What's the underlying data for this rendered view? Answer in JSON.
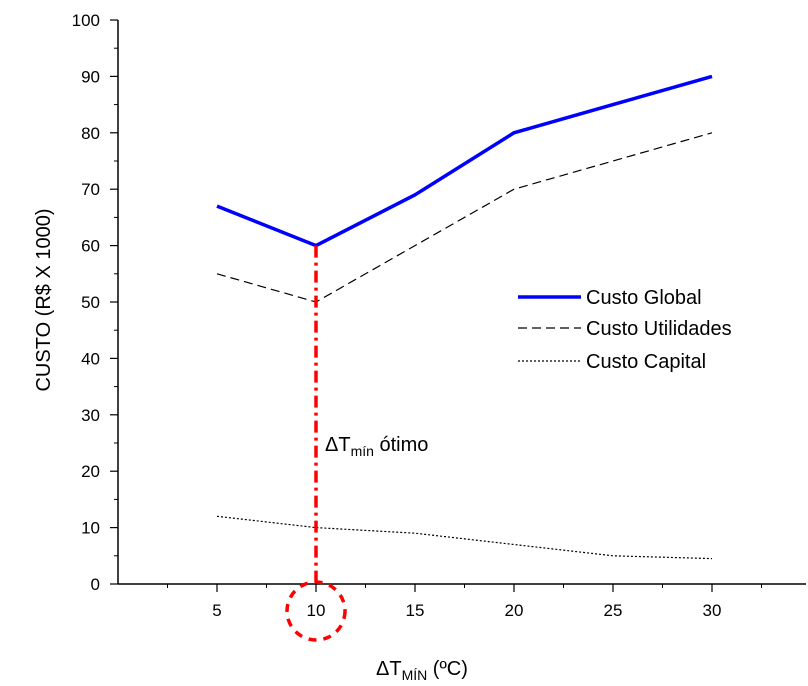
{
  "chart_data": {
    "type": "line",
    "xlabel": {
      "main": "ΔT",
      "sub": "MÍN",
      "tail": " (ºC)"
    },
    "ylabel": "CUSTO (R$ X 1000)",
    "xlim": [
      0,
      35
    ],
    "ylim": [
      0,
      100
    ],
    "x_ticks": [
      5,
      10,
      15,
      20,
      25,
      30
    ],
    "y_ticks": [
      0,
      10,
      20,
      30,
      40,
      50,
      60,
      70,
      80,
      90,
      100
    ],
    "legend_position": "right-middle",
    "series": [
      {
        "name": "Custo Global",
        "style": "solid",
        "color": "#0000ff",
        "x": [
          5,
          10,
          15,
          20,
          25,
          30
        ],
        "y": [
          67,
          60,
          69,
          80,
          85,
          90
        ]
      },
      {
        "name": "Custo Utilidades",
        "style": "dashed",
        "color": "#000000",
        "x": [
          5,
          10,
          15,
          20,
          25,
          30
        ],
        "y": [
          55,
          50,
          60,
          70,
          75,
          80
        ]
      },
      {
        "name": "Custo Capital",
        "style": "dotted",
        "color": "#000000",
        "x": [
          5,
          10,
          15,
          20,
          25,
          30
        ],
        "y": [
          12,
          10,
          9,
          7,
          5,
          4.5
        ]
      }
    ],
    "annotation": {
      "main": "ΔT",
      "sub": "mín",
      "tail": " ótimo",
      "x": 10,
      "y": 60,
      "color": "#ff0000"
    }
  }
}
